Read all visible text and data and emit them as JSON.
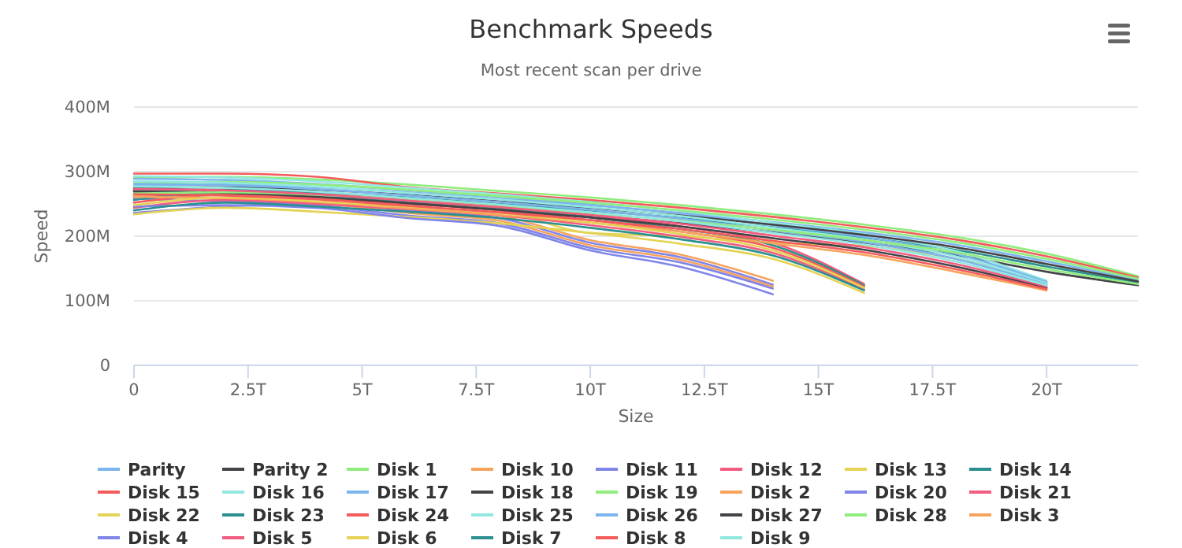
{
  "chart_data": {
    "type": "line",
    "title": "Benchmark Speeds",
    "subtitle": "Most recent scan per drive",
    "xlabel": "Size",
    "ylabel": "Speed",
    "x": [
      0,
      2,
      4,
      6,
      8,
      10,
      12,
      14,
      16,
      18,
      20,
      22
    ],
    "xlim": [
      0,
      22
    ],
    "xticks": [
      0,
      {
        "value": 2.5,
        "label": "2.5T"
      },
      {
        "value": 5,
        "label": "5T"
      },
      {
        "value": 7.5,
        "label": "7.5T"
      },
      {
        "value": 10,
        "label": "10T"
      },
      {
        "value": 12.5,
        "label": "12.5T"
      },
      {
        "value": 15,
        "label": "15T"
      },
      {
        "value": 17.5,
        "label": "17.5T"
      },
      {
        "value": 20,
        "label": "20T"
      }
    ],
    "ylim": [
      0,
      400
    ],
    "yticks": [
      0,
      {
        "value": 100,
        "label": "100M"
      },
      {
        "value": 200,
        "label": "200M"
      },
      {
        "value": 300,
        "label": "300M"
      },
      {
        "value": 400,
        "label": "400M"
      }
    ],
    "grid": "y",
    "legend": "bottom",
    "marker": "none",
    "line_style": "solid",
    "series": [
      {
        "name": "Parity",
        "color": "#7cb5ec",
        "values": [
          278,
          280,
          276,
          268,
          258,
          248,
          236,
          222,
          206,
          187,
          161,
          132
        ]
      },
      {
        "name": "Parity 2",
        "color": "#434348",
        "values": [
          262,
          264,
          260,
          252,
          242,
          232,
          220,
          206,
          190,
          171,
          145,
          124
        ]
      },
      {
        "name": "Disk 1",
        "color": "#90ed7d",
        "values": [
          290,
          292,
          288,
          280,
          270,
          260,
          248,
          234,
          218,
          199,
          173,
          138
        ]
      },
      {
        "name": "Disk 10",
        "color": "#f7a35c",
        "values": [
          272,
          266,
          260,
          244,
          232,
          194,
          171,
          131,
          null,
          null,
          null,
          null
        ]
      },
      {
        "name": "Disk 11",
        "color": "#8085e9",
        "values": [
          236,
          246,
          252,
          240,
          228,
          190,
          167,
          125,
          null,
          null,
          null,
          null
        ]
      },
      {
        "name": "Disk 12",
        "color": "#f15c80",
        "values": [
          260,
          272,
          266,
          258,
          248,
          233,
          215,
          190,
          126,
          null,
          null,
          null
        ]
      },
      {
        "name": "Disk 13",
        "color": "#e4d354",
        "values": [
          270,
          272,
          262,
          250,
          240,
          205,
          200,
          190,
          185,
          165,
          128,
          null
        ]
      },
      {
        "name": "Disk 14",
        "color": "#2b908f",
        "values": [
          270,
          272,
          268,
          260,
          250,
          240,
          228,
          214,
          198,
          179,
          153,
          128
        ]
      },
      {
        "name": "Disk 15",
        "color": "#f45b5b",
        "values": [
          297,
          297,
          292,
          276,
          266,
          256,
          244,
          230,
          214,
          195,
          169,
          136
        ]
      },
      {
        "name": "Disk 16",
        "color": "#91e8e1",
        "values": [
          293,
          291,
          285,
          275,
          265,
          253,
          239,
          221,
          203,
          177,
          131,
          null
        ]
      },
      {
        "name": "Disk 17",
        "color": "#7cb5ec",
        "values": [
          289,
          287,
          281,
          271,
          261,
          249,
          235,
          217,
          199,
          173,
          129,
          null
        ]
      },
      {
        "name": "Disk 18",
        "color": "#434348",
        "values": [
          274,
          276,
          272,
          264,
          254,
          244,
          232,
          218,
          202,
          183,
          157,
          130
        ]
      },
      {
        "name": "Disk 19",
        "color": "#90ed7d",
        "values": [
          282,
          284,
          280,
          272,
          262,
          252,
          240,
          226,
          210,
          191,
          165,
          134
        ]
      },
      {
        "name": "Disk 2",
        "color": "#f7a35c",
        "values": [
          262,
          258,
          252,
          236,
          224,
          186,
          163,
          122,
          null,
          null,
          null,
          null
        ]
      },
      {
        "name": "Disk 20",
        "color": "#8085e9",
        "values": [
          258,
          254,
          248,
          232,
          220,
          182,
          159,
          119,
          null,
          null,
          null,
          null
        ]
      },
      {
        "name": "Disk 21",
        "color": "#f15c80",
        "values": [
          244,
          256,
          250,
          242,
          232,
          217,
          199,
          174,
          118,
          null,
          null,
          null
        ]
      },
      {
        "name": "Disk 22",
        "color": "#e4d354",
        "values": [
          234,
          244,
          238,
          230,
          220,
          205,
          188,
          165,
          112,
          null,
          null,
          null
        ]
      },
      {
        "name": "Disk 23",
        "color": "#2b908f",
        "values": [
          256,
          268,
          262,
          254,
          244,
          229,
          211,
          186,
          124,
          null,
          null,
          null
        ]
      },
      {
        "name": "Disk 24",
        "color": "#f45b5b",
        "values": [
          252,
          264,
          258,
          250,
          240,
          225,
          207,
          182,
          122,
          null,
          null,
          null
        ]
      },
      {
        "name": "Disk 25",
        "color": "#91e8e1",
        "values": [
          285,
          283,
          277,
          267,
          257,
          245,
          231,
          213,
          195,
          169,
          127,
          null
        ]
      },
      {
        "name": "Disk 26",
        "color": "#7cb5ec",
        "values": [
          281,
          279,
          273,
          263,
          253,
          241,
          227,
          209,
          191,
          165,
          125,
          null
        ]
      },
      {
        "name": "Disk 27",
        "color": "#434348",
        "values": [
          269,
          267,
          261,
          251,
          241,
          229,
          215,
          197,
          179,
          153,
          120,
          null
        ]
      },
      {
        "name": "Disk 28",
        "color": "#90ed7d",
        "values": [
          266,
          268,
          264,
          256,
          246,
          236,
          224,
          210,
          194,
          175,
          149,
          126
        ]
      },
      {
        "name": "Disk 3",
        "color": "#f7a35c",
        "values": [
          261,
          259,
          253,
          243,
          233,
          221,
          207,
          189,
          171,
          145,
          116,
          null
        ]
      },
      {
        "name": "Disk 4",
        "color": "#8085e9",
        "values": [
          246,
          248,
          244,
          228,
          216,
          178,
          152,
          110,
          null,
          null,
          null,
          null
        ]
      },
      {
        "name": "Disk 5",
        "color": "#f15c80",
        "values": [
          273,
          271,
          265,
          255,
          245,
          233,
          219,
          201,
          183,
          157,
          122,
          null
        ]
      },
      {
        "name": "Disk 6",
        "color": "#e4d354",
        "values": [
          248,
          260,
          254,
          246,
          236,
          221,
          203,
          178,
          120,
          null,
          null,
          null
        ]
      },
      {
        "name": "Disk 7",
        "color": "#2b908f",
        "values": [
          240,
          252,
          246,
          238,
          228,
          213,
          195,
          170,
          116,
          null,
          null,
          null
        ]
      },
      {
        "name": "Disk 8",
        "color": "#f45b5b",
        "values": [
          265,
          263,
          257,
          247,
          237,
          225,
          211,
          193,
          175,
          149,
          118,
          null
        ]
      },
      {
        "name": "Disk 9",
        "color": "#91e8e1",
        "values": [
          277,
          275,
          269,
          259,
          249,
          237,
          223,
          205,
          187,
          161,
          124,
          null
        ]
      }
    ]
  }
}
